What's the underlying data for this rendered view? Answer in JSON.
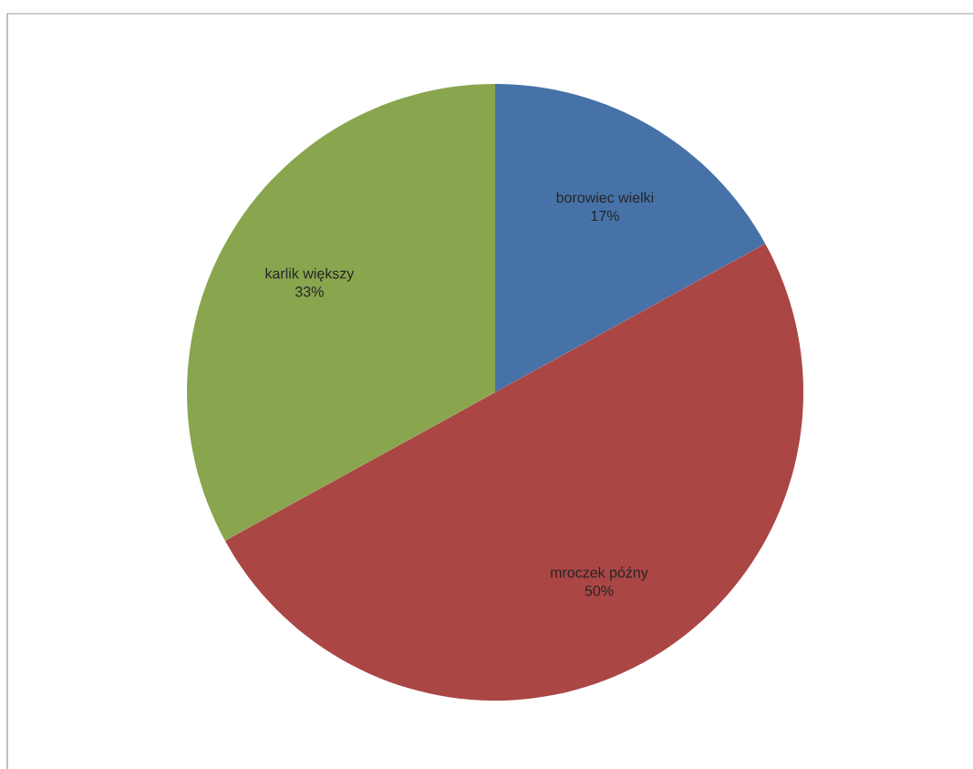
{
  "chart_data": {
    "type": "pie",
    "categories": [
      "borowiec wielki",
      "mroczek późny",
      "karlik większy"
    ],
    "values": [
      17,
      50,
      33
    ],
    "value_labels": [
      "17%",
      "50%",
      "33%"
    ],
    "colors": [
      "#4672a8",
      "#aa4644",
      "#89a54e"
    ]
  }
}
